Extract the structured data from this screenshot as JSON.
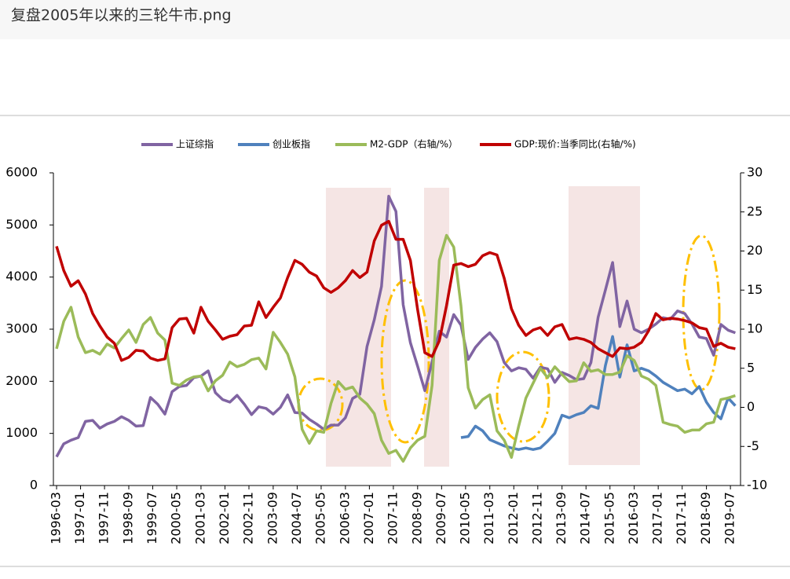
{
  "header": {
    "title": "复盘2005年以来的三轮牛市.png"
  },
  "chart_data": {
    "type": "line",
    "x": [
      1996.17,
      1996.42,
      1996.67,
      1996.92,
      1997.17,
      1997.42,
      1997.67,
      1997.92,
      1998.17,
      1998.42,
      1998.67,
      1998.92,
      1999.17,
      1999.42,
      1999.67,
      1999.92,
      2000.17,
      2000.42,
      2000.67,
      2000.92,
      2001.17,
      2001.42,
      2001.67,
      2001.92,
      2002.17,
      2002.42,
      2002.67,
      2002.92,
      2003.17,
      2003.42,
      2003.67,
      2003.92,
      2004.17,
      2004.42,
      2004.67,
      2004.92,
      2005.17,
      2005.42,
      2005.67,
      2005.92,
      2006.17,
      2006.42,
      2006.67,
      2006.92,
      2007.17,
      2007.42,
      2007.67,
      2007.92,
      2008.17,
      2008.42,
      2008.67,
      2008.92,
      2009.17,
      2009.42,
      2009.67,
      2009.92,
      2010.17,
      2010.42,
      2010.67,
      2010.92,
      2011.17,
      2011.42,
      2011.67,
      2011.92,
      2012.17,
      2012.42,
      2012.67,
      2012.92,
      2013.17,
      2013.42,
      2013.67,
      2013.92,
      2014.17,
      2014.42,
      2014.67,
      2014.92,
      2015.17,
      2015.42,
      2015.67,
      2015.92,
      2016.17,
      2016.42,
      2016.67,
      2016.92,
      2017.17,
      2017.42,
      2017.67,
      2017.92,
      2018.17,
      2018.42,
      2018.67,
      2018.92,
      2019.17,
      2019.42,
      2019.67
    ],
    "series": [
      {
        "name": "上证综指",
        "color": "#8064a2",
        "values": [
          550,
          800,
          870,
          920,
          1230,
          1250,
          1100,
          1180,
          1230,
          1320,
          1250,
          1140,
          1150,
          1690,
          1560,
          1370,
          1800,
          1900,
          1920,
          2070,
          2100,
          2200,
          1780,
          1650,
          1600,
          1730,
          1560,
          1360,
          1510,
          1480,
          1370,
          1500,
          1740,
          1400,
          1390,
          1270,
          1180,
          1080,
          1160,
          1160,
          1300,
          1670,
          1750,
          2670,
          3180,
          3820,
          5550,
          5260,
          3470,
          2740,
          2290,
          1820,
          2370,
          2960,
          2850,
          3280,
          3080,
          2420,
          2650,
          2810,
          2930,
          2760,
          2360,
          2200,
          2260,
          2230,
          2060,
          2270,
          2240,
          1980,
          2170,
          2110,
          2030,
          2050,
          2360,
          3230,
          3750,
          4280,
          3050,
          3540,
          3000,
          2930,
          3000,
          3100,
          3220,
          3190,
          3350,
          3300,
          3100,
          2850,
          2820,
          2500,
          3090,
          2980,
          2930
        ]
      },
      {
        "name": "创业板指",
        "color": "#4f81bd",
        "values": [
          null,
          null,
          null,
          null,
          null,
          null,
          null,
          null,
          null,
          null,
          null,
          null,
          null,
          null,
          null,
          null,
          null,
          null,
          null,
          null,
          null,
          null,
          null,
          null,
          null,
          null,
          null,
          null,
          null,
          null,
          null,
          null,
          null,
          null,
          null,
          null,
          null,
          null,
          null,
          null,
          null,
          null,
          null,
          null,
          null,
          null,
          null,
          null,
          null,
          null,
          null,
          null,
          null,
          null,
          null,
          null,
          920,
          940,
          1140,
          1050,
          880,
          820,
          760,
          720,
          690,
          720,
          690,
          720,
          850,
          1000,
          1350,
          1300,
          1360,
          1400,
          1530,
          1480,
          2300,
          2860,
          2080,
          2700,
          2200,
          2250,
          2200,
          2100,
          1980,
          1900,
          1820,
          1850,
          1760,
          1900,
          1600,
          1400,
          1280,
          1680,
          1530
        ]
      },
      {
        "name": "M2-GDP（右轴/%）",
        "color": "#9bbb59",
        "axis": "y2",
        "values": [
          7.5,
          11,
          12.8,
          9,
          7,
          7.3,
          6.8,
          8.1,
          7.6,
          8.8,
          9.9,
          8.3,
          10.6,
          11.5,
          9.5,
          8.6,
          3.1,
          2.8,
          3.5,
          3.9,
          4,
          2.1,
          3.4,
          4.1,
          5.8,
          5.2,
          5.5,
          6.1,
          6.3,
          4.9,
          9.6,
          8.3,
          6.8,
          3.9,
          -2.8,
          -4.6,
          -3,
          -3.2,
          0.5,
          3.3,
          2.3,
          2.6,
          1.2,
          0.4,
          -0.8,
          -4.2,
          -5.9,
          -5.5,
          -6.9,
          -5.2,
          -4.2,
          -3.7,
          2.8,
          18.8,
          22,
          20.5,
          13,
          2.5,
          -0.1,
          1,
          1.6,
          -3,
          -4.2,
          -6.4,
          -2.4,
          1.2,
          3.1,
          5,
          3.8,
          5.2,
          4.2,
          3.3,
          3.4,
          5.7,
          4.6,
          4.8,
          4.2,
          4.2,
          4.5,
          6.6,
          6,
          4,
          3.6,
          2.8,
          -1.9,
          -2.2,
          -2.4,
          -3.2,
          -2.9,
          -2.9,
          -2.1,
          -1.9,
          1,
          1.2,
          1.5
        ]
      },
      {
        "name": "GDP:现价:当季同比(右轴/%)",
        "color": "#c00000",
        "axis": "y2",
        "values": [
          20.6,
          17.5,
          15.5,
          16.2,
          14.5,
          12,
          10.4,
          9,
          8.2,
          6,
          6.4,
          7.3,
          7.2,
          6.3,
          6,
          6.2,
          10.2,
          11.3,
          11.4,
          9.5,
          12.8,
          11,
          9.9,
          8.7,
          9.1,
          9.3,
          10.4,
          10.5,
          13.5,
          11.5,
          12.8,
          14,
          16.6,
          18.8,
          18.3,
          17.3,
          16.8,
          15.3,
          14.7,
          15.3,
          16.2,
          17.5,
          16.6,
          17.3,
          21.3,
          23.3,
          23.8,
          21.5,
          21.5,
          18.8,
          12.5,
          7,
          6.5,
          8.5,
          13,
          18.2,
          18.4,
          18,
          18.3,
          19.4,
          19.8,
          19.5,
          16.5,
          12.6,
          10.5,
          9.2,
          9.9,
          10.2,
          9.2,
          10.3,
          10.6,
          8.7,
          8.9,
          8.7,
          8.3,
          7.5,
          7,
          6.5,
          7.6,
          7.5,
          7.7,
          8.3,
          9.8,
          12,
          11.2,
          11.4,
          11.3,
          11.1,
          10.8,
          10.2,
          10,
          7.8,
          8.2,
          7.7,
          7.5
        ]
      }
    ],
    "xlim": [
      1996.06,
      2019.85
    ],
    "xticks": [
      {
        "value": 1996.17,
        "label": "1996-03"
      },
      {
        "value": 1997.0,
        "label": "1997-01"
      },
      {
        "value": 1997.83,
        "label": "1997-11"
      },
      {
        "value": 1998.67,
        "label": "1998-09"
      },
      {
        "value": 1999.5,
        "label": "1999-07"
      },
      {
        "value": 2000.33,
        "label": "2000-05"
      },
      {
        "value": 2001.17,
        "label": "2001-03"
      },
      {
        "value": 2002.0,
        "label": "2002-01"
      },
      {
        "value": 2002.83,
        "label": "2002-11"
      },
      {
        "value": 2003.67,
        "label": "2003-09"
      },
      {
        "value": 2004.5,
        "label": "2004-07"
      },
      {
        "value": 2005.33,
        "label": "2005-05"
      },
      {
        "value": 2006.17,
        "label": "2006-03"
      },
      {
        "value": 2007.0,
        "label": "2007-01"
      },
      {
        "value": 2007.83,
        "label": "2007-11"
      },
      {
        "value": 2008.67,
        "label": "2008-09"
      },
      {
        "value": 2009.5,
        "label": "2009-07"
      },
      {
        "value": 2010.33,
        "label": "2010-05"
      },
      {
        "value": 2011.17,
        "label": "2011-03"
      },
      {
        "value": 2012.0,
        "label": "2012-01"
      },
      {
        "value": 2012.83,
        "label": "2012-11"
      },
      {
        "value": 2013.67,
        "label": "2013-09"
      },
      {
        "value": 2014.5,
        "label": "2014-07"
      },
      {
        "value": 2015.33,
        "label": "2015-05"
      },
      {
        "value": 2016.17,
        "label": "2016-03"
      },
      {
        "value": 2017.0,
        "label": "2017-01"
      },
      {
        "value": 2017.83,
        "label": "2017-11"
      },
      {
        "value": 2018.67,
        "label": "2018-09"
      },
      {
        "value": 2019.5,
        "label": "2019-07"
      }
    ],
    "ylim": [
      0,
      6000
    ],
    "yticks": [
      0,
      1000,
      2000,
      3000,
      4000,
      5000,
      6000
    ],
    "y2lim": [
      -10,
      30
    ],
    "y2ticks": [
      -10,
      -5,
      0,
      5,
      10,
      15,
      20,
      25,
      30
    ]
  }
}
